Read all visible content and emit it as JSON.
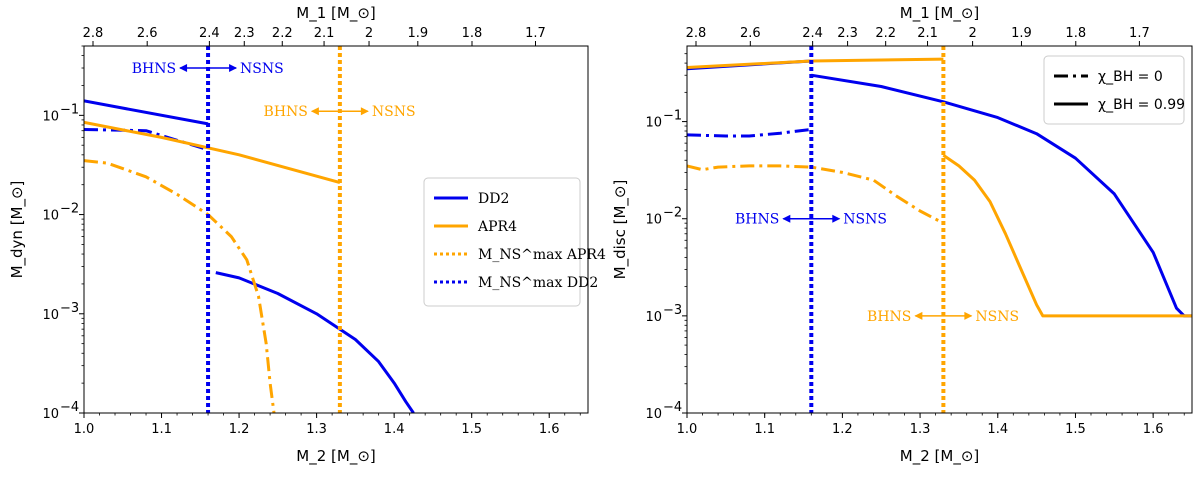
{
  "colors": {
    "dd2": "#0000ee",
    "apr4": "#ffa500"
  },
  "chart_data": [
    {
      "type": "line",
      "id": "left",
      "xlabel": "M_2 [M_⊙]",
      "ylabel": "M_dyn [M_⊙]",
      "top_xlabel": "M_1 [M_⊙]",
      "xlim": [
        1.0,
        1.65
      ],
      "ylim": [
        0.0001,
        0.5
      ],
      "yscale": "log",
      "x_ticks": [
        1.0,
        1.1,
        1.2,
        1.3,
        1.4,
        1.5,
        1.6
      ],
      "x_tick_labels": [
        "1.0",
        "1.1",
        "1.2",
        "1.3",
        "1.4",
        "1.5",
        "1.6"
      ],
      "y_ticks": [
        0.0001,
        0.001,
        0.01,
        0.1
      ],
      "y_tick_labels": [
        "10",
        "10",
        "10",
        "10"
      ],
      "y_tick_exps": [
        "−4",
        "−3",
        "−2",
        "−1"
      ],
      "top_ticks": [
        {
          "x": 1.0116,
          "label": "2.8"
        },
        {
          "x": 1.0815,
          "label": "2.6"
        },
        {
          "x": 1.1617,
          "label": "2.4"
        },
        {
          "x": 1.2067,
          "label": "2.3"
        },
        {
          "x": 1.2557,
          "label": "2.2"
        },
        {
          "x": 1.3096,
          "label": "2.1"
        },
        {
          "x": 1.3676,
          "label": "2"
        },
        {
          "x": 1.4305,
          "label": "1.9"
        },
        {
          "x": 1.5004,
          "label": "1.8"
        },
        {
          "x": 1.5823,
          "label": "1.7"
        }
      ],
      "vlines": [
        {
          "x": 1.16,
          "color": "dd2"
        },
        {
          "x": 1.33,
          "color": "apr4"
        }
      ],
      "annotations": [
        {
          "x": 1.16,
          "y": 0.3,
          "left": "BHNS",
          "right": "NSNS",
          "color": "dd2"
        },
        {
          "x": 1.33,
          "y": 0.11,
          "left": "BHNS",
          "right": "NSNS",
          "color": "apr4"
        }
      ],
      "series": [
        {
          "name": "DD2 χ=0.99 (BH)",
          "color": "dd2",
          "style": "solid",
          "x": [
            1.0,
            1.16
          ],
          "y": [
            0.14,
            0.082
          ]
        },
        {
          "name": "DD2 χ=0 (BH)",
          "color": "dd2",
          "style": "dashdot",
          "x": [
            1.0,
            1.08,
            1.16
          ],
          "y": [
            0.072,
            0.07,
            0.045
          ]
        },
        {
          "name": "DD2 (NS)",
          "color": "dd2",
          "style": "solid",
          "x": [
            1.17,
            1.2,
            1.25,
            1.3,
            1.35,
            1.38,
            1.4,
            1.415,
            1.425
          ],
          "y": [
            0.0026,
            0.0023,
            0.0016,
            0.001,
            0.00055,
            0.00033,
            0.0002,
            0.00013,
            0.0001
          ]
        },
        {
          "name": "APR4 χ=0.99",
          "color": "apr4",
          "style": "solid",
          "x": [
            1.0,
            1.1,
            1.2,
            1.33
          ],
          "y": [
            0.085,
            0.06,
            0.04,
            0.021
          ]
        },
        {
          "name": "APR4 χ=0",
          "color": "apr4",
          "style": "dashdot",
          "x": [
            1.0,
            1.03,
            1.08,
            1.12,
            1.16,
            1.19,
            1.21,
            1.225,
            1.235,
            1.24,
            1.245
          ],
          "y": [
            0.035,
            0.033,
            0.024,
            0.016,
            0.01,
            0.006,
            0.0035,
            0.0015,
            0.0005,
            0.0002,
            0.0001
          ]
        }
      ],
      "legend": {
        "position": "center-right",
        "entries": [
          {
            "label": "DD2",
            "color": "dd2",
            "style": "solid"
          },
          {
            "label": "APR4",
            "color": "apr4",
            "style": "solid"
          },
          {
            "label": "M_NS^max APR4",
            "color": "apr4",
            "style": "dotted"
          },
          {
            "label": "M_NS^max DD2",
            "color": "dd2",
            "style": "dotted"
          }
        ]
      }
    },
    {
      "type": "line",
      "id": "right",
      "xlabel": "M_2 [M_⊙]",
      "ylabel": "M_disc [M_⊙]",
      "top_xlabel": "M_1 [M_⊙]",
      "xlim": [
        1.0,
        1.65
      ],
      "ylim": [
        0.0001,
        0.6
      ],
      "yscale": "log",
      "x_ticks": [
        1.0,
        1.1,
        1.2,
        1.3,
        1.4,
        1.5,
        1.6
      ],
      "x_tick_labels": [
        "1.0",
        "1.1",
        "1.2",
        "1.3",
        "1.4",
        "1.5",
        "1.6"
      ],
      "y_ticks": [
        0.0001,
        0.001,
        0.01,
        0.1
      ],
      "y_tick_labels": [
        "10",
        "10",
        "10",
        "10"
      ],
      "y_tick_exps": [
        "−4",
        "−3",
        "−2",
        "−1"
      ],
      "top_ticks": [
        {
          "x": 1.0116,
          "label": "2.8"
        },
        {
          "x": 1.0815,
          "label": "2.6"
        },
        {
          "x": 1.1617,
          "label": "2.4"
        },
        {
          "x": 1.2067,
          "label": "2.3"
        },
        {
          "x": 1.2557,
          "label": "2.2"
        },
        {
          "x": 1.3096,
          "label": "2.1"
        },
        {
          "x": 1.3676,
          "label": "2"
        },
        {
          "x": 1.4305,
          "label": "1.9"
        },
        {
          "x": 1.5004,
          "label": "1.8"
        },
        {
          "x": 1.5823,
          "label": "1.7"
        }
      ],
      "vlines": [
        {
          "x": 1.16,
          "color": "dd2"
        },
        {
          "x": 1.33,
          "color": "apr4"
        }
      ],
      "annotations": [
        {
          "x": 1.16,
          "y": 0.01,
          "left": "BHNS",
          "right": "NSNS",
          "color": "dd2"
        },
        {
          "x": 1.33,
          "y": 0.001,
          "left": "BHNS",
          "right": "NSNS",
          "color": "apr4"
        }
      ],
      "series": [
        {
          "name": "DD2 χ=0.99 (BH)",
          "color": "dd2",
          "style": "solid",
          "x": [
            1.0,
            1.16
          ],
          "y": [
            0.35,
            0.42
          ]
        },
        {
          "name": "DD2 χ=0 (BH)",
          "color": "dd2",
          "style": "dashdot",
          "x": [
            1.0,
            1.05,
            1.08,
            1.12,
            1.16
          ],
          "y": [
            0.073,
            0.071,
            0.071,
            0.076,
            0.083
          ]
        },
        {
          "name": "DD2 (NS)",
          "color": "dd2",
          "style": "solid",
          "x": [
            1.16,
            1.25,
            1.33,
            1.4,
            1.45,
            1.5,
            1.55,
            1.6,
            1.63,
            1.64,
            1.65
          ],
          "y": [
            0.3,
            0.23,
            0.16,
            0.11,
            0.075,
            0.042,
            0.018,
            0.0045,
            0.0012,
            0.001,
            0.001
          ]
        },
        {
          "name": "APR4 χ=0.99",
          "color": "apr4",
          "style": "solid",
          "x": [
            1.0,
            1.16,
            1.33
          ],
          "y": [
            0.36,
            0.42,
            0.44
          ]
        },
        {
          "name": "APR4 χ=0",
          "color": "apr4",
          "style": "dashdot",
          "x": [
            1.0,
            1.02,
            1.04,
            1.08,
            1.12,
            1.16,
            1.2,
            1.24,
            1.27,
            1.3,
            1.33
          ],
          "y": [
            0.035,
            0.032,
            0.034,
            0.035,
            0.035,
            0.034,
            0.03,
            0.025,
            0.017,
            0.012,
            0.009
          ]
        },
        {
          "name": "APR4 (NS)",
          "color": "apr4",
          "style": "solid",
          "x": [
            1.33,
            1.35,
            1.37,
            1.39,
            1.41,
            1.43,
            1.45,
            1.458,
            1.5,
            1.6,
            1.65
          ],
          "y": [
            0.045,
            0.035,
            0.025,
            0.015,
            0.007,
            0.003,
            0.0013,
            0.001,
            0.001,
            0.001,
            0.001
          ]
        }
      ],
      "legend": {
        "position": "top-right",
        "entries": [
          {
            "label": "χ_BH = 0",
            "color": "#000000",
            "style": "dashdot"
          },
          {
            "label": "χ_BH = 0.99",
            "color": "#000000",
            "style": "solid"
          }
        ]
      }
    }
  ]
}
